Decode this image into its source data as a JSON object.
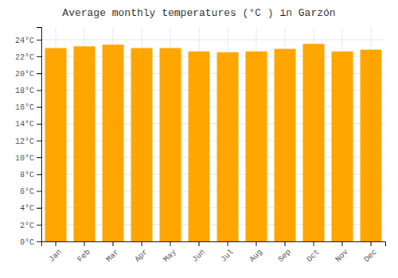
{
  "chart_data": {
    "type": "bar",
    "title": "Average monthly temperatures (°C ) in Garzón",
    "categories": [
      "Jan",
      "Feb",
      "Mar",
      "Apr",
      "May",
      "Jun",
      "Jul",
      "Aug",
      "Sep",
      "Oct",
      "Nov",
      "Dec"
    ],
    "values": [
      23.0,
      23.2,
      23.4,
      23.0,
      23.0,
      22.6,
      22.5,
      22.6,
      22.9,
      23.5,
      22.6,
      22.8
    ],
    "color": "#FFA500",
    "ylim": [
      0,
      25.5
    ],
    "yticks": [
      {
        "value": 0,
        "label": "0°C"
      },
      {
        "value": 2,
        "label": "2°C"
      },
      {
        "value": 4,
        "label": "4°C"
      },
      {
        "value": 6,
        "label": "6°C"
      },
      {
        "value": 8,
        "label": "8°C"
      },
      {
        "value": 10,
        "label": "10°C"
      },
      {
        "value": 12,
        "label": "12°C"
      },
      {
        "value": 14,
        "label": "14°C"
      },
      {
        "value": 16,
        "label": "16°C"
      },
      {
        "value": 18,
        "label": "18°C"
      },
      {
        "value": 20,
        "label": "20°C"
      },
      {
        "value": 22,
        "label": "22°C"
      },
      {
        "value": 24,
        "label": "24°C"
      }
    ],
    "grid": true
  }
}
